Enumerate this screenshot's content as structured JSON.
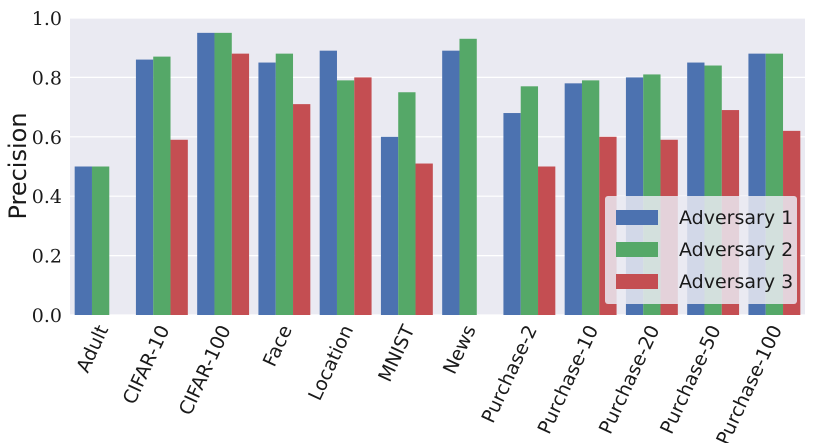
{
  "chart_data": {
    "type": "bar",
    "title": "",
    "xlabel": "",
    "ylabel": "Precision",
    "ylim": [
      0,
      1.0
    ],
    "yticks": [
      "0.0",
      "0.2",
      "0.4",
      "0.6",
      "0.8",
      "1.0"
    ],
    "grid": true,
    "legend_position": "bottom-right",
    "categories": [
      "Adult",
      "CIFAR-10",
      "CIFAR-100",
      "Face",
      "Location",
      "MNIST",
      "News",
      "Purchase-2",
      "Purchase-10",
      "Purchase-20",
      "Purchase-50",
      "Purchase-100"
    ],
    "series": [
      {
        "name": "Adversary 1",
        "color": "#4c72b0",
        "values": [
          0.5,
          0.86,
          0.95,
          0.85,
          0.89,
          0.6,
          0.89,
          0.68,
          0.78,
          0.8,
          0.85,
          0.88
        ]
      },
      {
        "name": "Adversary 2",
        "color": "#55a868",
        "values": [
          0.5,
          0.87,
          0.95,
          0.88,
          0.79,
          0.75,
          0.93,
          0.77,
          0.79,
          0.81,
          0.84,
          0.88
        ]
      },
      {
        "name": "Adversary 3",
        "color": "#c44e52",
        "values": [
          0.0,
          0.59,
          0.88,
          0.71,
          0.8,
          0.51,
          0.0,
          0.5,
          0.6,
          0.59,
          0.69,
          0.62
        ]
      }
    ]
  }
}
